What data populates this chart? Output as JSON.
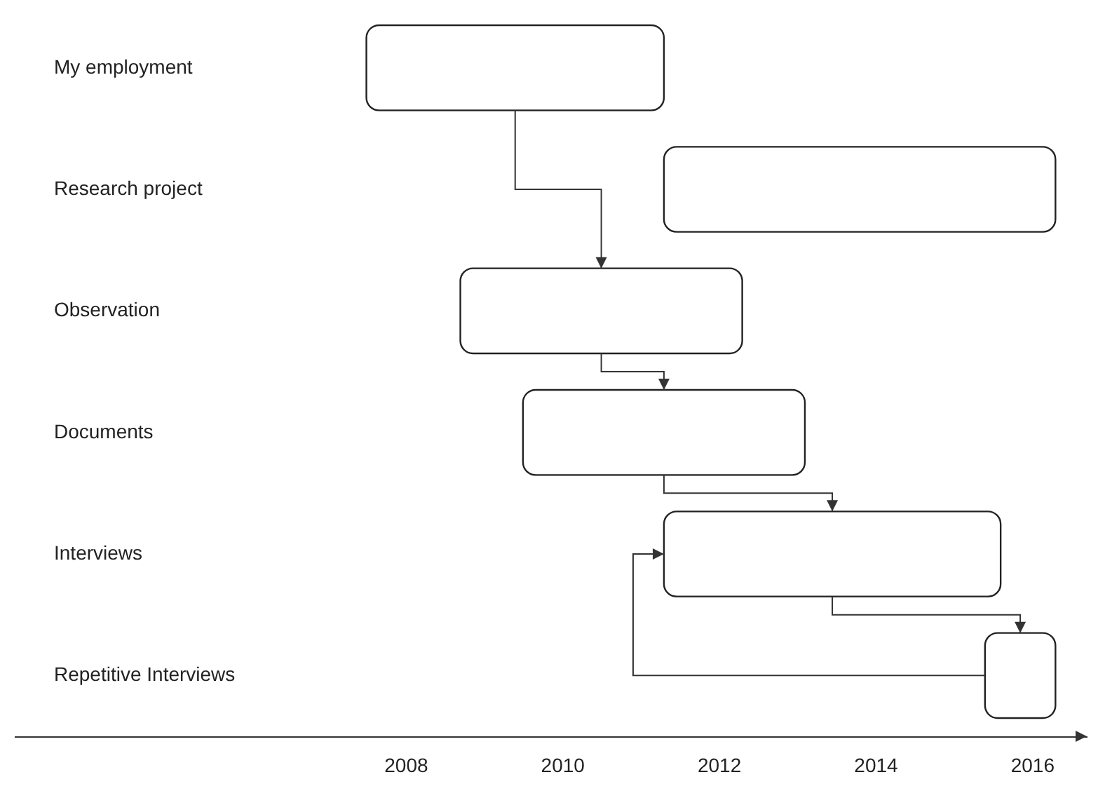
{
  "chart_data": {
    "type": "bar",
    "orientation": "horizontal",
    "categories": [
      "My employment",
      "Research project",
      "Observation",
      "Documents",
      "Interviews",
      "Repetitive Interviews"
    ],
    "base": [
      2007.5,
      2011.3,
      2008.7,
      2009.5,
      2011.3,
      2015.4
    ],
    "values": [
      3.8,
      5.0,
      3.6,
      3.6,
      4.3,
      0.9
    ],
    "color": "#ffffff",
    "xlim": [
      2003,
      2016.7
    ],
    "xticks": [
      2008,
      2010,
      2012,
      2014,
      2016
    ],
    "grid": false
  }
}
